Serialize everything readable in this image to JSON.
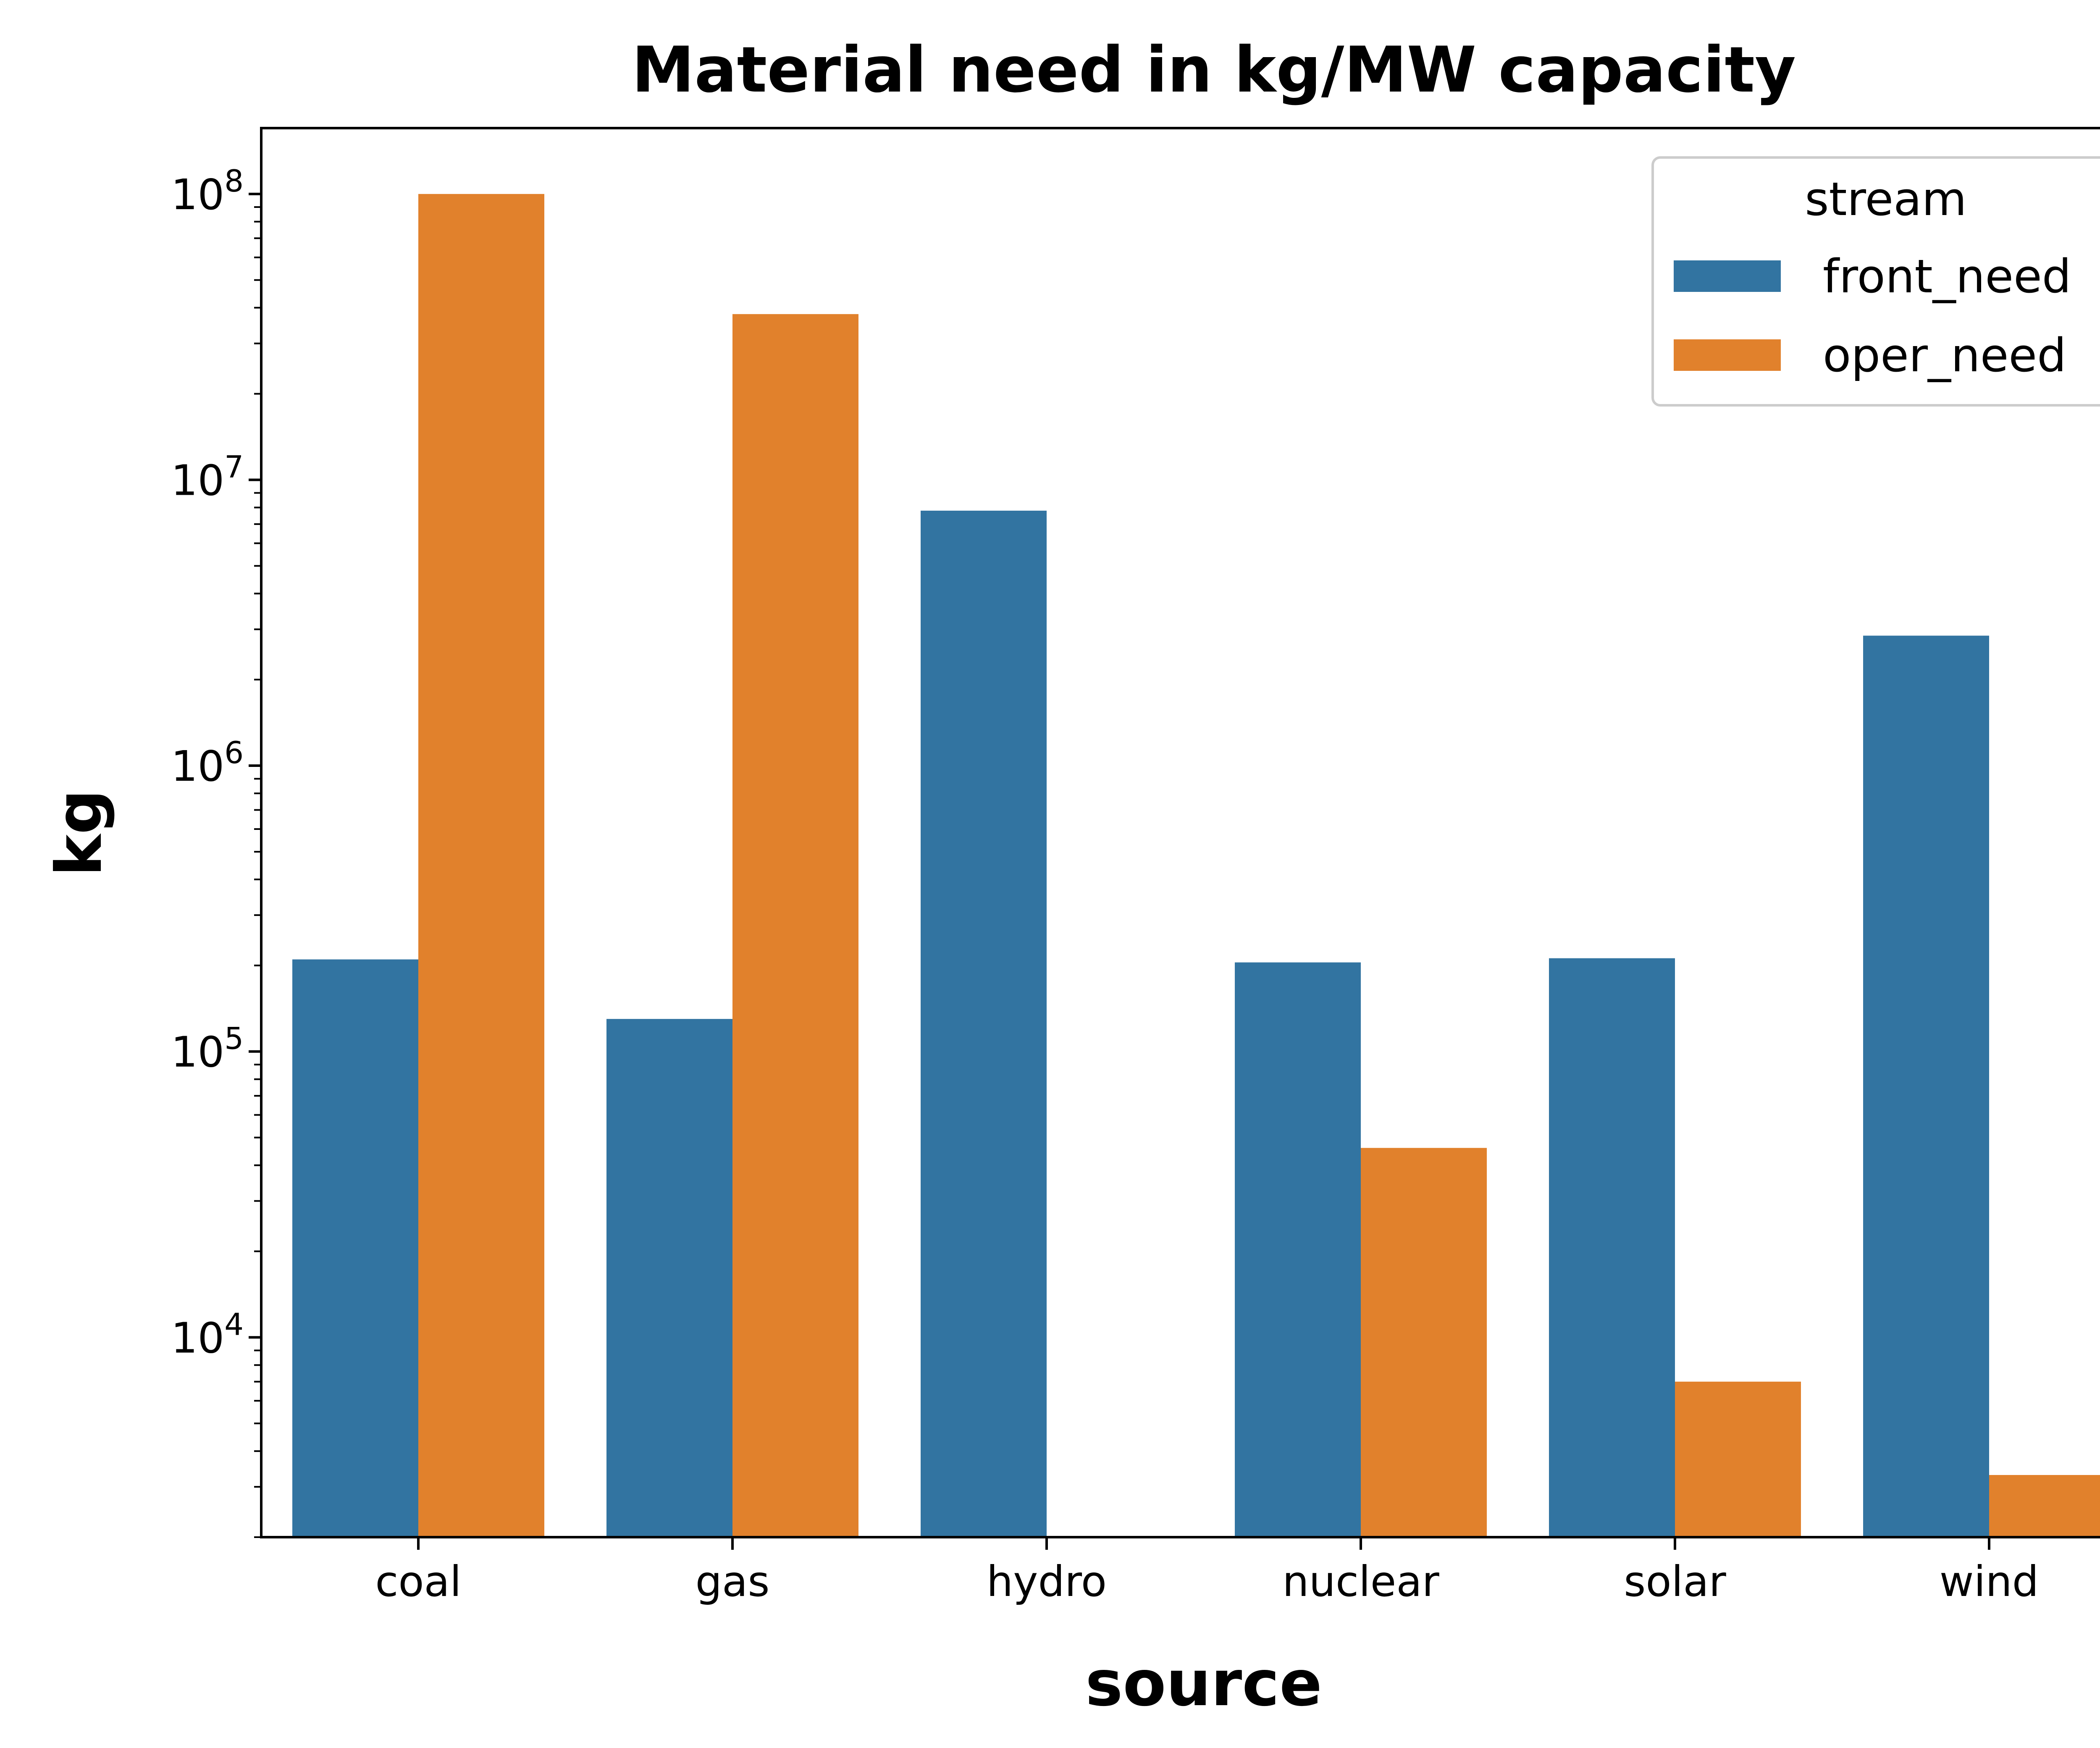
{
  "chart_data": {
    "type": "bar",
    "title": "Material need in kg/MW capacity",
    "xlabel": "source",
    "ylabel": "kg",
    "yscale": "log",
    "ylim": [
      2000,
      170000000
    ],
    "yticks": [
      {
        "value": 10000,
        "base": "10",
        "exp": "4"
      },
      {
        "value": 100000,
        "base": "10",
        "exp": "5"
      },
      {
        "value": 1000000,
        "base": "10",
        "exp": "6"
      },
      {
        "value": 10000000,
        "base": "10",
        "exp": "7"
      },
      {
        "value": 100000000,
        "base": "10",
        "exp": "8"
      }
    ],
    "categories": [
      "coal",
      "gas",
      "hydro",
      "nuclear",
      "solar",
      "wind"
    ],
    "legend": {
      "title": "stream",
      "position": "upper right"
    },
    "series": [
      {
        "name": "front_need",
        "color": "#3274a1",
        "values": [
          210000,
          130000,
          7800000,
          205000,
          212000,
          2850000
        ]
      },
      {
        "name": "oper_need",
        "color": "#e1812c",
        "values": [
          100000000,
          38000000,
          null,
          46000,
          7000,
          3300
        ]
      }
    ],
    "grid": false
  }
}
